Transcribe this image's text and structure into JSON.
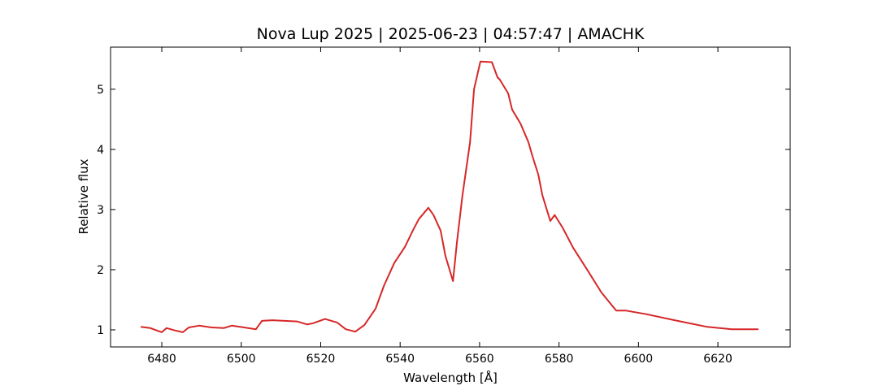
{
  "chart_data": {
    "type": "line",
    "title": "Nova Lup 2025 | 2025-06-23 | 04:57:47 | AMACHK",
    "x_label": "Wavelength [Å]",
    "y_label": "Relative flux",
    "x": [
      6474.7,
      6477.1,
      6480,
      6481.2,
      6483.3,
      6485.3,
      6486.8,
      6489.4,
      6492.5,
      6495.6,
      6497.6,
      6500.7,
      6503.7,
      6505.2,
      6507.8,
      6510.9,
      6514,
      6516.6,
      6518.1,
      6521.1,
      6524.2,
      6526.3,
      6528.7,
      6531,
      6533.8,
      6535.9,
      6538.5,
      6541.2,
      6543.2,
      6544.7,
      6547.1,
      6548.4,
      6550.2,
      6551.4,
      6553.3,
      6554.3,
      6555.7,
      6557.6,
      6558.6,
      6560.2,
      6563.1,
      6564.5,
      6565.1,
      6567.2,
      6568.2,
      6570.3,
      6572.3,
      6573.3,
      6574.8,
      6575.8,
      6577.8,
      6578.9,
      6580.9,
      6583.6,
      6586.6,
      6590.7,
      6594.4,
      6596.9,
      6602,
      6609.1,
      6617.3,
      6623.5,
      6630.2
    ],
    "series": [
      {
        "name": "flux",
        "color": "#d62728",
        "values": [
          1.05,
          1.03,
          0.96,
          1.03,
          0.99,
          0.96,
          1.04,
          1.07,
          1.04,
          1.03,
          1.07,
          1.04,
          1.01,
          1.15,
          1.16,
          1.15,
          1.14,
          1.09,
          1.11,
          1.18,
          1.12,
          1.01,
          0.97,
          1.08,
          1.35,
          1.73,
          2.11,
          2.38,
          2.65,
          2.84,
          3.03,
          2.91,
          2.65,
          2.23,
          1.81,
          2.46,
          3.24,
          4.12,
          5.0,
          5.46,
          5.45,
          5.2,
          5.16,
          4.93,
          4.66,
          4.43,
          4.12,
          3.89,
          3.58,
          3.24,
          2.81,
          2.91,
          2.7,
          2.36,
          2.05,
          1.62,
          1.32,
          1.32,
          1.26,
          1.16,
          1.05,
          1.01,
          1.01
        ]
      }
    ],
    "xlim": [
      6467.1,
      6638.2
    ],
    "ylim": [
      0.716,
      5.7
    ],
    "xticks": [
      6480,
      6500,
      6520,
      6540,
      6560,
      6580,
      6600,
      6620
    ],
    "yticks": [
      1,
      2,
      3,
      4,
      5
    ]
  }
}
